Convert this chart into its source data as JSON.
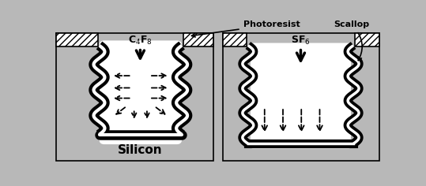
{
  "silicon_color": "#b8b8b8",
  "white_color": "#ffffff",
  "black_color": "#000000",
  "fig_bg": "#b8b8b8",
  "left_label": "Silicon",
  "left_gas": "C$_4$F$_8$",
  "right_gas": "SF$_6$",
  "photoresist_label": "Photoresist",
  "scallop_label": "Scallop"
}
